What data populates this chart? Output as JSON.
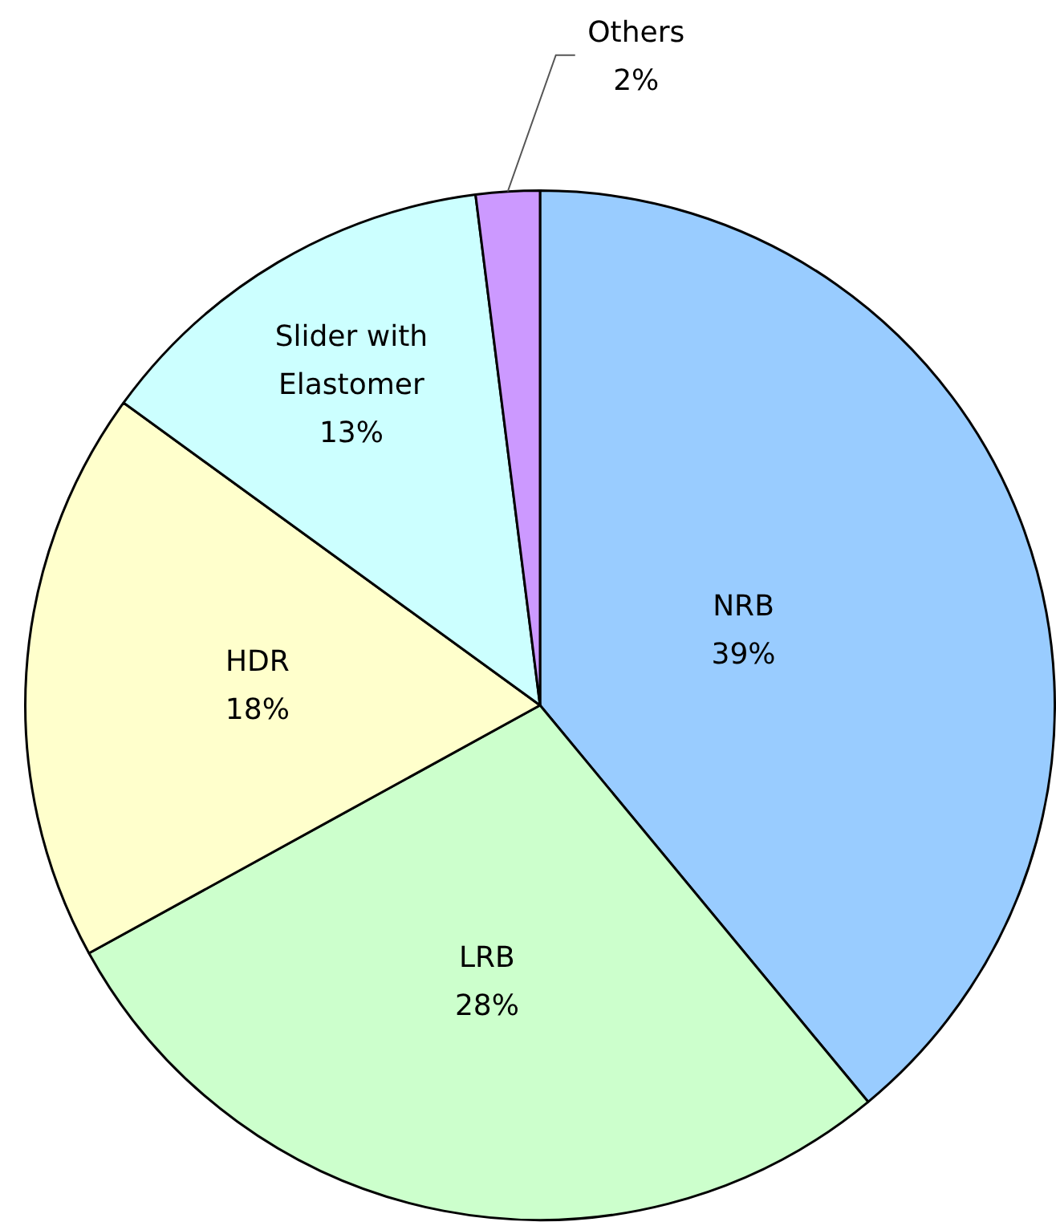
{
  "chart_data": {
    "type": "pie",
    "categories": [
      "NRB",
      "LRB",
      "HDR",
      "Slider with Elastomer",
      "Others"
    ],
    "values": [
      39,
      28,
      18,
      13,
      2
    ],
    "colors": [
      "#99ccff",
      "#ccffcc",
      "#ffffcc",
      "#ccffff",
      "#cc99ff"
    ],
    "value_labels": [
      "39%",
      "28%",
      "18%",
      "13%",
      "2%"
    ],
    "legend": false
  }
}
